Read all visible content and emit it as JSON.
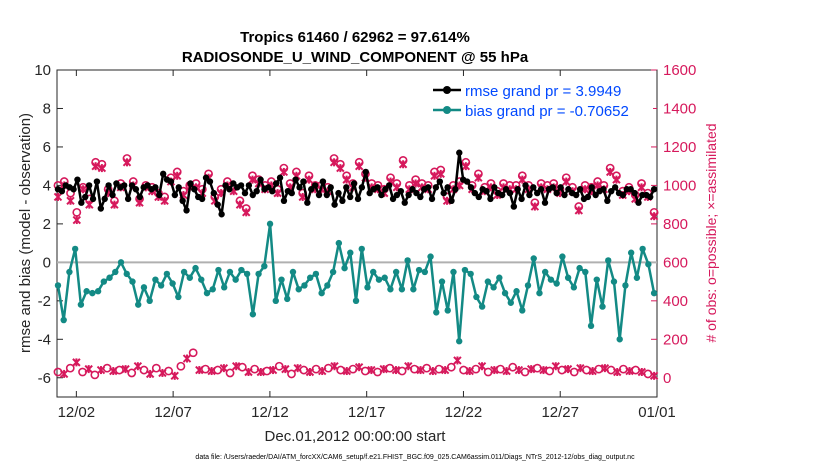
{
  "chart_data": {
    "type": "line",
    "title_line1": "Tropics 61460 / 62962 = 97.614%",
    "title_line2": "RADIOSONDE_U_WIND_COMPONENT @ 55 hPa",
    "xlabel": "Dec.01,2012 00:00:00 start",
    "ylabel_left": "rmse and bias (model - observation)",
    "ylabel_right": "# of obs: o=possible; ×=assimilated",
    "xlim": [
      0,
      31
    ],
    "ylim_left": [
      -7,
      10
    ],
    "ylim_right": [
      -100,
      1600
    ],
    "x_tick_values": [
      1,
      6,
      11,
      16,
      21,
      26,
      31
    ],
    "x_tick_labels": [
      "12/02",
      "12/07",
      "12/12",
      "12/17",
      "12/22",
      "12/27",
      "01/01"
    ],
    "y_left_ticks": [
      -6,
      -4,
      -2,
      0,
      2,
      4,
      6,
      8,
      10
    ],
    "y_left_tick_labels": [
      "-6",
      "-4",
      "-2",
      "0",
      "2",
      "4",
      "6",
      "8",
      "10"
    ],
    "y_right_ticks": [
      0,
      200,
      400,
      600,
      800,
      1000,
      1200,
      1400,
      1600
    ],
    "y_right_tick_labels": [
      "0",
      "200",
      "400",
      "600",
      "800",
      "1000",
      "1200",
      "1400",
      "1600"
    ],
    "zero_line": 0,
    "series": [
      {
        "name": "rmse grand pr = 3.9949",
        "color": "#000000",
        "axis": "left",
        "values": [
          3.8,
          3.7,
          4.0,
          3.9,
          3.8,
          4.3,
          3.1,
          3.4,
          4.0,
          3.3,
          4.2,
          2.8,
          3.3,
          4.0,
          3.5,
          4.1,
          3.9,
          4.0,
          3.3,
          4.0,
          3.8,
          3.4,
          3.9,
          4.0,
          3.8,
          3.9,
          3.5,
          4.6,
          4.3,
          4.2,
          3.5,
          3.9,
          3.2,
          2.7,
          4.1,
          3.8,
          3.4,
          3.3,
          4.4,
          4.2,
          3.6,
          3.0,
          2.5,
          4.0,
          3.8,
          4.1,
          3.9,
          4.0,
          3.6,
          4.0,
          3.5,
          3.7,
          4.3,
          3.8,
          3.9,
          3.7,
          4.1,
          4.4,
          3.2,
          3.7,
          3.6,
          4.3,
          3.9,
          4.2,
          3.1,
          3.8,
          4.0,
          3.5,
          4.2,
          3.5,
          3.9,
          3.0,
          3.6,
          3.2,
          3.9,
          3.4,
          4.1,
          3.3,
          3.9,
          4.7,
          3.6,
          3.8,
          3.9,
          3.5,
          3.8,
          4.0,
          3.3,
          3.5,
          3.7,
          3.1,
          3.5,
          3.8,
          3.6,
          3.4,
          3.8,
          3.9,
          3.3,
          3.9,
          4.2,
          3.6,
          3.9,
          3.2,
          3.8,
          5.7,
          4.3,
          4.2,
          3.9,
          3.6,
          3.4,
          3.8,
          3.7,
          3.3,
          3.9,
          3.6,
          3.5,
          3.8,
          3.6,
          2.9,
          3.8,
          3.3,
          4.0,
          3.5,
          3.9,
          3.6,
          3.8,
          3.1,
          3.8,
          3.9,
          3.6,
          3.9,
          3.5,
          3.8,
          3.6,
          3.5,
          3.8,
          3.3,
          3.4,
          3.9,
          3.5,
          3.7,
          3.8,
          3.2,
          3.7,
          3.9,
          3.6,
          3.5,
          3.8,
          3.8,
          3.6,
          3.1,
          3.5,
          3.5,
          3.4,
          3.8
        ]
      },
      {
        "name": "bias grand pr = -0.70652",
        "color": "#138a85",
        "axis": "left",
        "values": [
          -1.2,
          -3.0,
          -0.5,
          0.7,
          -2.2,
          -1.5,
          -1.6,
          -1.5,
          -1.0,
          -0.8,
          -0.5,
          0.0,
          -0.6,
          -1.0,
          -2.2,
          -1.3,
          -2.0,
          -0.9,
          -1.2,
          -0.6,
          -1.1,
          -1.8,
          -0.5,
          -0.8,
          -0.3,
          -0.9,
          -1.6,
          -1.4,
          -0.4,
          -1.3,
          -0.5,
          -0.9,
          -0.4,
          -0.6,
          -2.7,
          -0.6,
          -0.2,
          2.0,
          -2.0,
          -0.9,
          -1.9,
          -0.5,
          -1.4,
          -1.2,
          -0.8,
          -0.6,
          -1.6,
          -1.2,
          -0.5,
          1.0,
          -0.3,
          0.5,
          -2.0,
          0.7,
          -1.3,
          -0.5,
          -0.9,
          -0.8,
          -1.4,
          -0.5,
          -1.4,
          0.1,
          -1.4,
          -0.4,
          -0.5,
          0.3,
          -2.6,
          -1.0,
          -2.5,
          -0.5,
          -4.1,
          -0.4,
          -0.6,
          -1.8,
          -2.3,
          -1.0,
          -1.3,
          -0.8,
          -1.6,
          -2.1,
          -1.5,
          -2.5,
          -1.2,
          0.2,
          -1.6,
          -0.5,
          -0.9,
          -1.1,
          0.3,
          -0.8,
          -1.3,
          -0.3,
          -0.5,
          -3.3,
          -0.9,
          -2.3,
          0.1,
          -1.0,
          -4.0,
          -1.2,
          0.5,
          -0.8,
          0.7,
          -0.1,
          -1.6
        ]
      },
      {
        "name": "obs possible",
        "color": "#d6195c",
        "marker": "circle",
        "axis": "right",
        "values": [
          1000,
          1020,
          960,
          860,
          990,
          930,
          1120,
          1110,
          980,
          920,
          1010,
          1140,
          1020,
          930,
          1000,
          990,
          960,
          940,
          1040,
          1070,
          970,
          1000,
          1010,
          980,
          1060,
          940,
          980,
          1020,
          990,
          920,
          880,
          1050,
          1030,
          1000,
          1020,
          980,
          1090,
          1010,
          1070,
          960,
          1050,
          1000,
          1000,
          990,
          1140,
          1110,
          1050,
          1010,
          1120,
          1060,
          1010,
          1000,
          980,
          1040,
          1010,
          1130,
          1000,
          1030,
          1010,
          1000,
          1070,
          1080,
          940,
          1000,
          1020,
          1120,
          1000,
          1060,
          990,
          1010,
          970,
          1010,
          1000,
          1000,
          1050,
          1000,
          910,
          1010,
          1000,
          1010,
          980,
          1040,
          990,
          890,
          1000,
          990,
          1020,
          1000,
          1090,
          1050,
          970,
          990,
          950,
          1010,
          960,
          860
        ]
      },
      {
        "name": "obs assimilated",
        "color": "#d6195c",
        "marker": "cross",
        "axis": "right",
        "values": [
          940,
          1000,
          920,
          820,
          980,
          900,
          1100,
          1090,
          960,
          900,
          990,
          1120,
          1000,
          910,
          990,
          970,
          940,
          920,
          1020,
          1050,
          950,
          990,
          990,
          960,
          1040,
          920,
          960,
          1000,
          970,
          900,
          860,
          1030,
          1010,
          980,
          1000,
          960,
          1070,
          990,
          1050,
          940,
          1030,
          980,
          980,
          970,
          1120,
          1090,
          1030,
          990,
          1100,
          1040,
          990,
          980,
          960,
          1020,
          990,
          1110,
          980,
          1010,
          990,
          980,
          1050,
          1060,
          920,
          980,
          1000,
          1100,
          980,
          1040,
          970,
          990,
          950,
          990,
          980,
          980,
          1030,
          980,
          890,
          990,
          980,
          990,
          960,
          1020,
          970,
          870,
          980,
          970,
          1000,
          980,
          1070,
          1030,
          950,
          970,
          930,
          990,
          940,
          840
        ]
      },
      {
        "name": "obs count (lower series)",
        "color": "#d6195c",
        "marker": "mixed",
        "axis": "right",
        "values": [
          30,
          20,
          50,
          80,
          30,
          45,
          15,
          40,
          50,
          35,
          40,
          45,
          25,
          60,
          40,
          20,
          50,
          25,
          35,
          10,
          60,
          100,
          130,
          40,
          45,
          35,
          40,
          50,
          25,
          60,
          55,
          30,
          45,
          30,
          35,
          40,
          60,
          45,
          20,
          50,
          40,
          30,
          45,
          35,
          50,
          60,
          40,
          35,
          45,
          55,
          35,
          40,
          30,
          45,
          50,
          40,
          35,
          60,
          45,
          40,
          50,
          35,
          45,
          40,
          55,
          90,
          40,
          35,
          45,
          60,
          30,
          40,
          45,
          35,
          55,
          40,
          30,
          45,
          50,
          40,
          35,
          60,
          40,
          45,
          30,
          50,
          40,
          35,
          45,
          50,
          40,
          30,
          45,
          35,
          40,
          30,
          20,
          10
        ]
      }
    ]
  },
  "footer": {
    "data_file": "data file: /Users/raeder/DAI/ATM_forcXX/CAM6_setup/f.e21.FHIST_BGC.f09_025.CAM6assim.011/Diags_NTrS_2012-12/obs_diag_output.nc"
  },
  "legend": {
    "rmse": "rmse grand pr = 3.9949",
    "bias": "bias grand pr = -0.70652"
  }
}
